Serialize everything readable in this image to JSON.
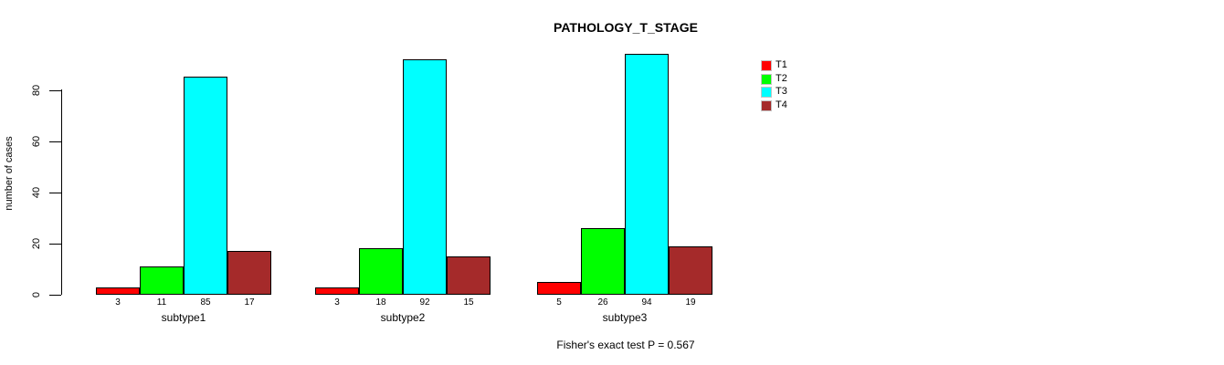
{
  "chart_data": {
    "type": "bar",
    "title": "PATHOLOGY_T_STAGE",
    "ylabel": "number of cases",
    "xlabel": "",
    "categories": [
      "subtype1",
      "subtype2",
      "subtype3"
    ],
    "series": [
      {
        "name": "T1",
        "color": "#ff0000",
        "values": [
          3,
          3,
          5
        ]
      },
      {
        "name": "T2",
        "color": "#00ff00",
        "values": [
          11,
          18,
          26
        ]
      },
      {
        "name": "T3",
        "color": "#00ffff",
        "values": [
          85,
          92,
          94
        ]
      },
      {
        "name": "T4",
        "color": "#a52a2a",
        "values": [
          17,
          15,
          19
        ]
      }
    ],
    "bar_value_labels": [
      [
        "3",
        "11",
        "85",
        "17"
      ],
      [
        "3",
        "18",
        "92",
        "15"
      ],
      [
        "5",
        "26",
        "94",
        "19"
      ]
    ],
    "yticks": [
      0,
      20,
      40,
      60,
      80
    ],
    "ylim": [
      0,
      95
    ],
    "grid": false,
    "legend_position": "top-right",
    "legend_labels": [
      "T1",
      "T2",
      "T3",
      "T4"
    ],
    "annotation": "Fisher's exact test P = 0.567",
    "bar_border_color": "#000000",
    "background_color": "#ffffff"
  }
}
